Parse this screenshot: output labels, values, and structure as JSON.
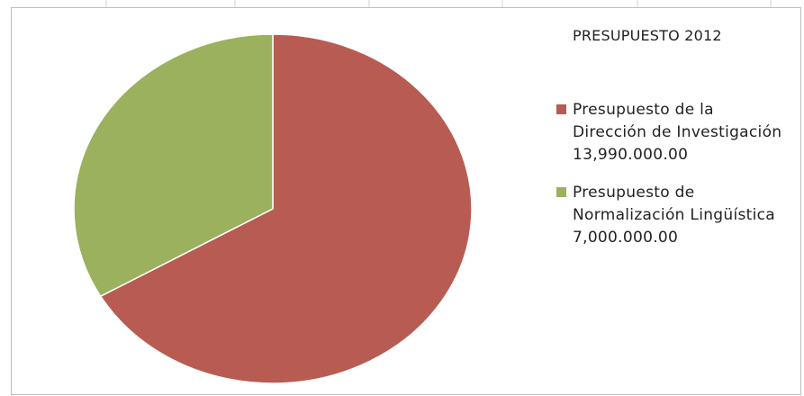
{
  "chart_data": {
    "type": "pie",
    "title": "PRESUPUESTO 2012",
    "series": [
      {
        "name": "Presupuesto de la Dirección de Investigación",
        "label_lines": [
          "Presupuesto de la",
          "Dirección de Investigación",
          "13,990.000.00"
        ],
        "value": 13990000.0,
        "value_label": "13,990.000.00",
        "color": "#b85b53"
      },
      {
        "name": "Presupuesto de Normalización Lingüística",
        "label_lines": [
          "Presupuesto de",
          "Normalización Lingüística",
          "7,000.000.00"
        ],
        "value": 7000000.0,
        "value_label": "7,000.000.00",
        "color": "#9bb15e"
      }
    ],
    "legend_position": "right",
    "slice_border_color": "#ffffff"
  }
}
